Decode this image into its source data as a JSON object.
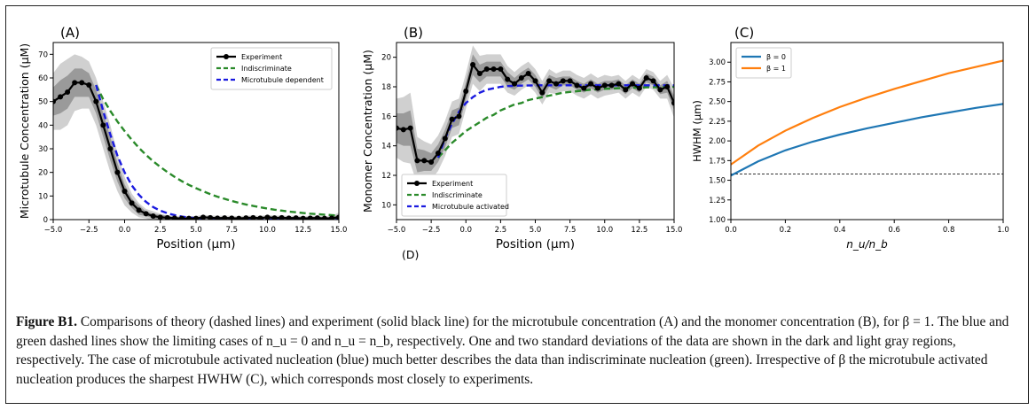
{
  "caption": {
    "label": "Figure B1.",
    "text": "Comparisons of theory (dashed lines) and experiment (solid black line) for the microtubule concentration (A) and the monomer concentration (B), for β = 1. The blue and green dashed lines show the limiting cases of n_u = 0 and n_u = n_b, respectively. One and two standard deviations of the data are shown in the dark and light gray regions, respectively. The case of microtubule activated nucleation (blue) much better describes the data than indiscriminate nucleation (green). Irrespective of β the microtubule activated nucleation produces the sharpest HWHW (C), which corresponds most closely to experiments."
  },
  "extra_label": "(D)",
  "chart_data": [
    {
      "panel": "(A)",
      "type": "line",
      "xlabel": "Position (μm)",
      "ylabel": "Microtubule Concentration (μM)",
      "xlim": [
        -5,
        15
      ],
      "ylim": [
        0,
        75
      ],
      "xticks": [
        "−5.0",
        "−2.5",
        "0.0",
        "2.5",
        "5.0",
        "7.5",
        "10.0",
        "12.5",
        "15.0"
      ],
      "yticks": [
        "0",
        "10",
        "20",
        "30",
        "40",
        "50",
        "60",
        "70"
      ],
      "legend_position": "top-right",
      "series": [
        {
          "name": "Experiment",
          "style": "solid-marker",
          "color": "#000000",
          "x": [
            -5,
            -4.5,
            -4,
            -3.5,
            -3,
            -2.5,
            -2,
            -1.5,
            -1,
            -0.5,
            0,
            0.5,
            1,
            1.5,
            2,
            2.5,
            3,
            3.5,
            4,
            4.5,
            5,
            5.5,
            6,
            6.5,
            7,
            7.5,
            8,
            8.5,
            9,
            9.5,
            10,
            10.5,
            11,
            11.5,
            12,
            12.5,
            13,
            13.5,
            14,
            14.5,
            15
          ],
          "y": [
            50,
            52,
            54,
            58,
            58,
            57,
            50,
            40,
            30,
            20,
            12,
            7,
            4,
            2.5,
            1.5,
            1,
            0.8,
            0.6,
            0.5,
            0.5,
            0.5,
            1,
            0.8,
            0.6,
            0.7,
            0.6,
            0.5,
            0.7,
            0.8,
            0.6,
            1,
            0.7,
            0.8,
            0.6,
            0.7,
            0.5,
            0.6,
            0.7,
            0.5,
            0.6,
            1
          ],
          "band1_halfwidth": [
            6,
            7,
            7,
            6,
            6,
            5,
            5,
            5,
            5,
            4,
            3,
            2,
            2,
            1,
            1,
            1,
            1,
            0.5,
            0.5,
            0.5,
            0.5,
            0.5,
            0.5,
            0.5,
            0.5,
            0.5,
            0.5,
            0.5,
            0.5,
            0.5,
            0.5,
            0.5,
            0.5,
            0.5,
            0.5,
            0.5,
            0.5,
            0.5,
            0.5,
            0.5,
            1
          ],
          "band2_halfwidth": [
            12,
            14,
            14,
            12,
            11,
            10,
            10,
            10,
            10,
            8,
            6,
            4,
            3,
            2,
            2,
            1.5,
            1,
            1,
            1,
            1,
            1,
            1,
            1,
            1,
            1,
            1,
            1,
            1,
            1,
            1,
            1,
            1,
            1,
            1,
            1,
            1,
            1,
            1,
            1,
            1,
            2
          ]
        },
        {
          "name": "Indiscriminate",
          "style": "dashed",
          "color": "#2a8a2a",
          "x": [
            -2,
            -1.5,
            -1,
            -0.5,
            0,
            0.5,
            1,
            1.5,
            2,
            2.5,
            3,
            3.5,
            4,
            4.5,
            5,
            5.5,
            6,
            6.5,
            7,
            7.5,
            8,
            8.5,
            9,
            9.5,
            10,
            10.5,
            11,
            11.5,
            12,
            12.5,
            13,
            13.5,
            14,
            14.5,
            15
          ],
          "y": [
            57,
            51,
            46,
            41.5,
            37.5,
            33.8,
            30.4,
            27.4,
            24.7,
            22.3,
            20.1,
            18.1,
            16.3,
            14.7,
            13.3,
            12,
            10.8,
            9.7,
            8.8,
            7.9,
            7.1,
            6.4,
            5.8,
            5.2,
            4.7,
            4.2,
            3.8,
            3.4,
            3.1,
            2.8,
            2.5,
            2.3,
            2.1,
            1.9,
            1.7
          ]
        },
        {
          "name": "Microtubule dependent",
          "style": "dashed",
          "color": "#1a1adf",
          "x": [
            -2,
            -1.5,
            -1,
            -0.5,
            0,
            0.5,
            1,
            1.5,
            2,
            2.5,
            3,
            3.5,
            4,
            4.5,
            5,
            6,
            7,
            8,
            9,
            10,
            11,
            12,
            13,
            14,
            15
          ],
          "y": [
            57,
            46,
            36,
            27,
            20,
            14.5,
            10.5,
            7.5,
            5.3,
            3.8,
            2.7,
            1.9,
            1.3,
            0.9,
            0.6,
            0.3,
            0.15,
            0.1,
            0.05,
            0.03,
            0.02,
            0.01,
            0.01,
            0,
            0
          ]
        }
      ]
    },
    {
      "panel": "(B)",
      "type": "line",
      "xlabel": "Position (μm)",
      "ylabel": "Monomer Concentration (μM)",
      "xlim": [
        -5,
        15
      ],
      "ylim": [
        9,
        21
      ],
      "xticks": [
        "−5.0",
        "−2.5",
        "0.0",
        "2.5",
        "5.0",
        "7.5",
        "10.0",
        "12.5",
        "15.0"
      ],
      "yticks": [
        "10",
        "12",
        "14",
        "16",
        "18",
        "20"
      ],
      "legend_position": "bottom-left",
      "series": [
        {
          "name": "Experiment",
          "style": "solid-marker",
          "color": "#000000",
          "x": [
            -5,
            -4.5,
            -4,
            -3.5,
            -3,
            -2.5,
            -2,
            -1.5,
            -1,
            -0.5,
            0,
            0.5,
            1,
            1.5,
            2,
            2.5,
            3,
            3.5,
            4,
            4.5,
            5,
            5.5,
            6,
            6.5,
            7,
            7.5,
            8,
            8.5,
            9,
            9.5,
            10,
            10.5,
            11,
            11.5,
            12,
            12.5,
            13,
            13.5,
            14,
            14.5,
            15
          ],
          "y": [
            15.2,
            15.1,
            15.2,
            13,
            13,
            12.9,
            13.5,
            14.5,
            15.8,
            16,
            17.7,
            19.5,
            18.9,
            19.2,
            19.2,
            19.2,
            18.5,
            18.2,
            18.6,
            18.9,
            18.4,
            17.6,
            18.4,
            18.2,
            18.4,
            18.4,
            18.1,
            17.9,
            18.2,
            17.9,
            18.1,
            18.1,
            18.2,
            17.8,
            18.2,
            17.9,
            18.6,
            18.4,
            17.8,
            18,
            16.9
          ],
          "band1_halfwidth": [
            1,
            1.1,
            1.2,
            0.8,
            0.7,
            0.6,
            0.6,
            0.6,
            0.6,
            0.6,
            0.6,
            0.7,
            0.6,
            0.5,
            0.5,
            0.5,
            0.5,
            0.4,
            0.4,
            0.4,
            0.4,
            0.4,
            0.4,
            0.4,
            0.3,
            0.3,
            0.3,
            0.3,
            0.3,
            0.3,
            0.3,
            0.3,
            0.3,
            0.3,
            0.3,
            0.3,
            0.3,
            0.3,
            0.3,
            0.4,
            0.5
          ],
          "band2_halfwidth": [
            2,
            2.2,
            2.4,
            1.6,
            1.3,
            1.2,
            1.2,
            1.2,
            1.2,
            1.2,
            1.2,
            1.3,
            1.2,
            1,
            1,
            1,
            0.9,
            0.8,
            0.8,
            0.8,
            0.8,
            0.8,
            0.8,
            0.7,
            0.7,
            0.7,
            0.7,
            0.7,
            0.7,
            0.7,
            0.7,
            0.6,
            0.6,
            0.6,
            0.6,
            0.6,
            0.6,
            0.6,
            0.6,
            0.8,
            1
          ]
        },
        {
          "name": "Indiscriminate",
          "style": "dashed",
          "color": "#2a8a2a",
          "x": [
            -2,
            -1.5,
            -1,
            -0.5,
            0,
            0.5,
            1,
            1.5,
            2,
            2.5,
            3,
            3.5,
            4,
            4.5,
            5,
            5.5,
            6,
            6.5,
            7,
            7.5,
            8,
            8.5,
            9,
            9.5,
            10,
            10.5,
            11,
            11.5,
            12,
            12.5,
            13,
            13.5,
            14,
            14.5,
            15
          ],
          "y": [
            13.2,
            13.7,
            14.2,
            14.6,
            15,
            15.3,
            15.6,
            15.9,
            16.1,
            16.4,
            16.6,
            16.8,
            16.9,
            17.1,
            17.2,
            17.3,
            17.4,
            17.5,
            17.6,
            17.65,
            17.7,
            17.75,
            17.8,
            17.83,
            17.86,
            17.88,
            17.9,
            17.92,
            17.94,
            17.95,
            17.96,
            17.97,
            17.98,
            17.99,
            18
          ]
        },
        {
          "name": "Microtubule activated",
          "style": "dashed",
          "color": "#1a1adf",
          "x": [
            -2,
            -1.5,
            -1,
            -0.5,
            0,
            0.5,
            1,
            1.5,
            2,
            2.5,
            3,
            4,
            5,
            6,
            7,
            8,
            9,
            10,
            11,
            12,
            13,
            14,
            15
          ],
          "y": [
            13.2,
            14.5,
            15.5,
            16.3,
            16.9,
            17.3,
            17.6,
            17.8,
            17.9,
            18,
            18.05,
            18.08,
            18.1,
            18.1,
            18.1,
            18.1,
            18.1,
            18.1,
            18.1,
            18.1,
            18.1,
            18.1,
            18.1
          ]
        }
      ]
    },
    {
      "panel": "(C)",
      "type": "line",
      "xlabel": "n_u/n_b",
      "ylabel": "HWHM (μm)",
      "xlim": [
        0,
        1
      ],
      "ylim": [
        1.0,
        3.25
      ],
      "xticks": [
        "0.0",
        "0.2",
        "0.4",
        "0.6",
        "0.8",
        "1.0"
      ],
      "yticks": [
        "1.00",
        "1.25",
        "1.50",
        "1.75",
        "2.00",
        "2.25",
        "2.50",
        "2.75",
        "3.00"
      ],
      "legend_position": "top-left",
      "reference_line_y": 1.58,
      "series": [
        {
          "name": "β = 0",
          "style": "solid",
          "color": "#1f77b4",
          "x": [
            0,
            0.1,
            0.2,
            0.3,
            0.4,
            0.5,
            0.6,
            0.7,
            0.8,
            0.9,
            1.0
          ],
          "y": [
            1.56,
            1.74,
            1.88,
            1.99,
            2.08,
            2.16,
            2.23,
            2.3,
            2.36,
            2.42,
            2.47
          ]
        },
        {
          "name": "β = 1",
          "style": "solid",
          "color": "#ff7f0e",
          "x": [
            0,
            0.1,
            0.2,
            0.3,
            0.4,
            0.5,
            0.6,
            0.7,
            0.8,
            0.9,
            1.0
          ],
          "y": [
            1.7,
            1.94,
            2.13,
            2.29,
            2.43,
            2.55,
            2.66,
            2.76,
            2.86,
            2.94,
            3.02
          ]
        }
      ]
    }
  ]
}
